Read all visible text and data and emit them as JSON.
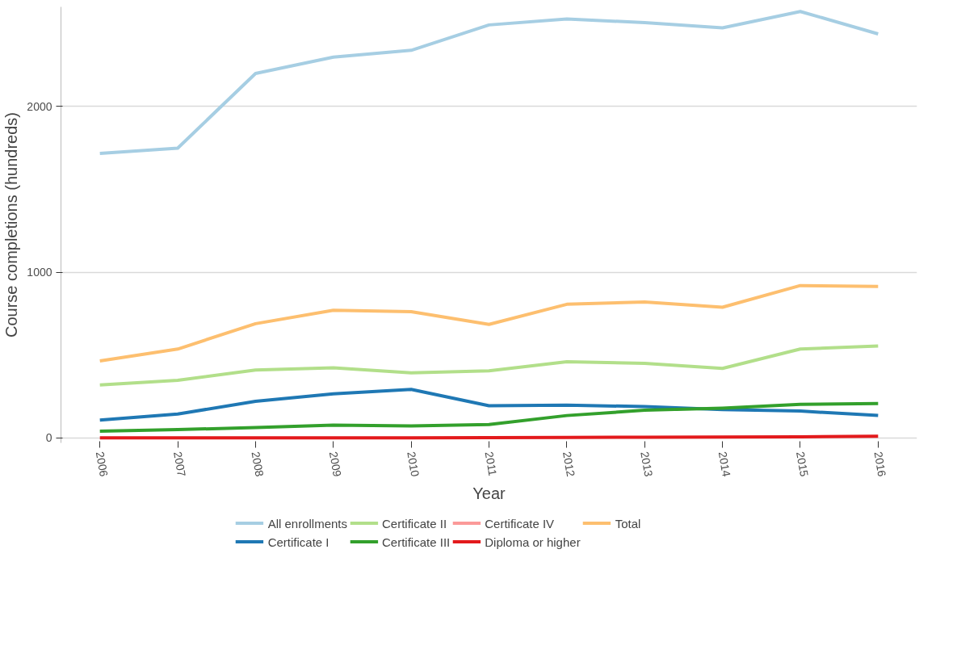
{
  "chart_data": {
    "type": "line",
    "xlabel": "Year",
    "ylabel": "Course completions (hundreds)",
    "x": [
      2006,
      2007,
      2008,
      2009,
      2010,
      2011,
      2012,
      2013,
      2014,
      2015,
      2016
    ],
    "xlim": [
      2005.5,
      2016.5
    ],
    "xticks": [
      2006,
      2007,
      2008,
      2009,
      2010,
      2011,
      2012,
      2013,
      2014,
      2015,
      2016
    ],
    "ylim": [
      -30,
      2600
    ],
    "yticks": [
      0,
      1000,
      2000
    ],
    "grid": "y",
    "legend": "bottom",
    "line_style": "solid",
    "series": [
      {
        "name": "All enrollments",
        "color": "#a6cee3",
        "values": [
          1716,
          1748,
          2198,
          2297,
          2338,
          2491,
          2527,
          2505,
          2473,
          2572,
          2437
        ]
      },
      {
        "name": "Certificate I",
        "color": "#1f78b4",
        "values": [
          108,
          144,
          221,
          266,
          293,
          194,
          198,
          189,
          171,
          162,
          135
        ]
      },
      {
        "name": "Certificate II",
        "color": "#b2df8a",
        "values": [
          320,
          347,
          410,
          423,
          392,
          405,
          459,
          450,
          419,
          536,
          554
        ]
      },
      {
        "name": "Certificate III",
        "color": "#33a02c",
        "values": [
          41,
          50,
          63,
          77,
          72,
          81,
          135,
          167,
          180,
          203,
          207
        ]
      },
      {
        "name": "Certificate IV",
        "color": "#fb9a99",
        "values": [
          null,
          null,
          null,
          null,
          null,
          null,
          null,
          null,
          null,
          null,
          null
        ]
      },
      {
        "name": "Diploma or higher",
        "color": "#e31a1c",
        "values": [
          0,
          0,
          0,
          1,
          1,
          2,
          3,
          4,
          5,
          7,
          10
        ]
      },
      {
        "name": "Total",
        "color": "#fdbf6f",
        "values": [
          464,
          536,
          689,
          770,
          761,
          685,
          806,
          820,
          788,
          919,
          914
        ]
      }
    ]
  }
}
